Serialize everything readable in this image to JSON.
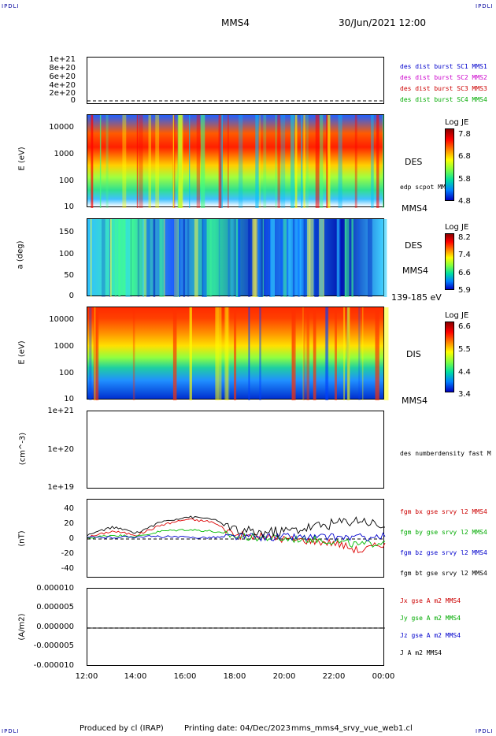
{
  "corners": {
    "tl": "IPDLI",
    "tr": "IPDLI",
    "bl": "IPDLI",
    "br": "IPDLI"
  },
  "header": {
    "spacecraft": "MMS4",
    "datetime": "30/Jun/2021 12:00"
  },
  "panels": {
    "p1": {
      "ticks": [
        "1e+21",
        "8e+20",
        "6e+20",
        "4e+20",
        "2e+20",
        "0"
      ],
      "labels": [
        {
          "text": "des dist burst SC1 MMS1",
          "color": "#0000cc"
        },
        {
          "text": "des dist burst SC2 MMS2",
          "color": "#cc00cc"
        },
        {
          "text": "des dist burst SC3 MMS3",
          "color": "#cc0000"
        },
        {
          "text": "des dist burst SC4 MMS4",
          "color": "#00aa00"
        }
      ]
    },
    "p2": {
      "ylabel": "E (eV)",
      "ticks": [
        "10000",
        "1000",
        "100",
        "10"
      ],
      "inst": "DES",
      "sub": "edp scpot MMS4",
      "sc": "MMS4",
      "cbar": {
        "title": "Log JE",
        "ticks": [
          "7.8",
          "6.8",
          "5.8",
          "4.8"
        ]
      }
    },
    "p3": {
      "ylabel": "a (deg)",
      "ticks": [
        "150",
        "100",
        "50",
        "0"
      ],
      "inst": "DES",
      "sc": "MMS4",
      "range": "139-185 eV",
      "cbar": {
        "title": "Log JE",
        "ticks": [
          "8.2",
          "7.4",
          "6.6",
          "5.9"
        ]
      }
    },
    "p4": {
      "ylabel": "E (eV)",
      "ticks": [
        "10000",
        "1000",
        "100",
        "10"
      ],
      "inst": "DIS",
      "sc": "MMS4",
      "cbar": {
        "title": "Log JE",
        "ticks": [
          "6.6",
          "5.5",
          "4.4",
          "3.4"
        ]
      }
    },
    "p5": {
      "ylabel": "(cm^-3)",
      "ticks": [
        "1e+21",
        "1e+20",
        "1e+19"
      ],
      "label": "des numberdensity fast M"
    },
    "p6": {
      "ylabel": "(nT)",
      "ticks": [
        "40",
        "20",
        "0",
        "-20",
        "-40"
      ],
      "labels": [
        {
          "text": "fgm bx gse srvy l2 MMS4",
          "color": "#cc0000"
        },
        {
          "text": "fgm by gse srvy l2 MMS4",
          "color": "#00aa00"
        },
        {
          "text": "fgm bz gse srvy l2 MMS4",
          "color": "#0000cc"
        },
        {
          "text": "fgm bt gse srvy l2 MMS4",
          "color": "#000000"
        }
      ]
    },
    "p7": {
      "ylabel": "(A/m2)",
      "ticks": [
        "0.000010",
        "0.000005",
        "0.000000",
        "-0.000005",
        "-0.000010"
      ],
      "labels": [
        {
          "text": "Jx gse A m2 MMS4",
          "color": "#cc0000"
        },
        {
          "text": "Jy gse A m2 MMS4",
          "color": "#00aa00"
        },
        {
          "text": "Jz gse A m2 MMS4",
          "color": "#0000cc"
        },
        {
          "text": "J A m2 MMS4",
          "color": "#000000"
        }
      ]
    }
  },
  "xaxis": {
    "ticks": [
      "12:00",
      "14:00",
      "16:00",
      "18:00",
      "20:00",
      "22:00",
      "00:00"
    ]
  },
  "footer": {
    "produced": "Produced by cl (IRAP)",
    "printing": "Printing date: 04/Dec/2023",
    "file": "mms_mms4_srvy_vue_web1.cl"
  },
  "chart_data": [
    {
      "type": "line",
      "title": "",
      "ylim": [
        0,
        1e+21
      ],
      "series": []
    },
    {
      "type": "heatmap",
      "ylabel": "E (eV)",
      "yscale": "log",
      "ylim": [
        10,
        30000
      ],
      "colorbar": "Log JE",
      "crange": [
        4.8,
        7.8
      ]
    },
    {
      "type": "heatmap",
      "ylabel": "a (deg)",
      "ylim": [
        0,
        180
      ],
      "colorbar": "Log JE",
      "crange": [
        5.9,
        8.2
      ]
    },
    {
      "type": "heatmap",
      "ylabel": "E (eV)",
      "yscale": "log",
      "ylim": [
        10,
        30000
      ],
      "colorbar": "Log JE",
      "crange": [
        3.4,
        6.6
      ]
    },
    {
      "type": "line",
      "ylabel": "(cm^-3)",
      "yscale": "log",
      "ylim": [
        1e+19,
        1e+21
      ],
      "series": []
    },
    {
      "type": "line",
      "ylabel": "(nT)",
      "ylim": [
        -50,
        50
      ],
      "x": [
        "12:00",
        "13:00",
        "14:00",
        "15:00",
        "16:00",
        "17:00",
        "18:00",
        "19:00",
        "20:00",
        "21:00",
        "22:00",
        "23:00",
        "00:00"
      ],
      "series": [
        {
          "name": "fgm bx gse srvy l2 MMS4",
          "values": [
            2,
            10,
            5,
            18,
            25,
            22,
            5,
            3,
            0,
            -2,
            -5,
            -15,
            -5
          ]
        },
        {
          "name": "fgm by gse srvy l2 MMS4",
          "values": [
            1,
            5,
            3,
            10,
            12,
            10,
            3,
            2,
            0,
            0,
            -3,
            -8,
            -3
          ]
        },
        {
          "name": "fgm bz gse srvy l2 MMS4",
          "values": [
            2,
            2,
            3,
            3,
            2,
            2,
            3,
            2,
            3,
            2,
            2,
            2,
            3
          ]
        },
        {
          "name": "fgm bt gse srvy l2 MMS4",
          "values": [
            5,
            15,
            8,
            22,
            28,
            26,
            10,
            8,
            10,
            15,
            20,
            25,
            15
          ]
        }
      ]
    },
    {
      "type": "line",
      "ylabel": "(A/m2)",
      "ylim": [
        -1e-05,
        1e-05
      ],
      "series": [
        {
          "name": "J A m2 MMS4",
          "values": [
            0,
            0,
            0,
            0,
            0,
            0,
            0,
            0,
            0,
            0,
            0,
            0,
            0
          ]
        }
      ]
    }
  ]
}
